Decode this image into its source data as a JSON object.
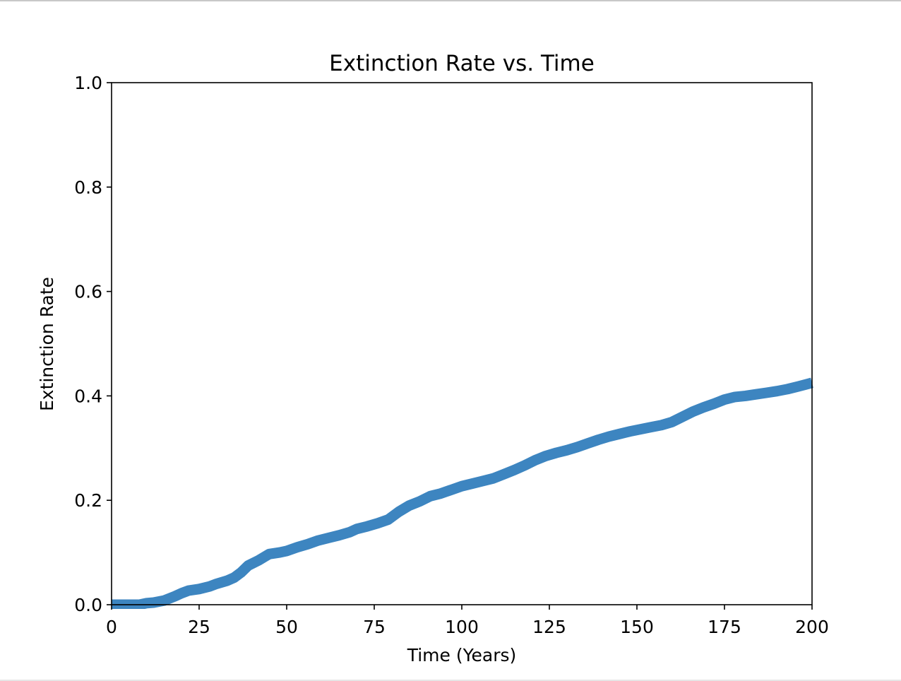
{
  "chart_data": {
    "type": "line",
    "title": "Extinction Rate vs. Time",
    "xlabel": "Time (Years)",
    "ylabel": "Extinction Rate",
    "xlim": [
      0,
      200
    ],
    "ylim": [
      0,
      1.0
    ],
    "x_ticks": [
      "0",
      "25",
      "50",
      "75",
      "100",
      "125",
      "150",
      "175",
      "200"
    ],
    "y_ticks": [
      "0.0",
      "0.2",
      "0.4",
      "0.6",
      "0.8",
      "1.0"
    ],
    "grid": false,
    "line_color": "#3d85c0",
    "series": [
      {
        "x": [
          0,
          5,
          8,
          10,
          12,
          15,
          18,
          20,
          22,
          25,
          28,
          30,
          33,
          35,
          37,
          39,
          42,
          45,
          48,
          50,
          53,
          56,
          59,
          62,
          65,
          68,
          70,
          73,
          76,
          79,
          82,
          85,
          88,
          91,
          94,
          97,
          100,
          103,
          106,
          109,
          112,
          115,
          118,
          121,
          124,
          127,
          130,
          133,
          136,
          139,
          142,
          145,
          148,
          151,
          154,
          157,
          160,
          163,
          166,
          169,
          172,
          175,
          178,
          181,
          184,
          187,
          190,
          193,
          196,
          200
        ],
        "y": [
          0.0,
          0.0,
          0.0,
          0.003,
          0.004,
          0.008,
          0.016,
          0.022,
          0.027,
          0.03,
          0.035,
          0.04,
          0.046,
          0.052,
          0.062,
          0.075,
          0.085,
          0.097,
          0.1,
          0.103,
          0.11,
          0.116,
          0.123,
          0.128,
          0.133,
          0.139,
          0.145,
          0.15,
          0.156,
          0.163,
          0.178,
          0.19,
          0.198,
          0.208,
          0.213,
          0.22,
          0.227,
          0.232,
          0.237,
          0.242,
          0.25,
          0.258,
          0.267,
          0.277,
          0.285,
          0.291,
          0.296,
          0.302,
          0.309,
          0.316,
          0.322,
          0.327,
          0.332,
          0.336,
          0.34,
          0.344,
          0.35,
          0.36,
          0.37,
          0.378,
          0.385,
          0.393,
          0.398,
          0.4,
          0.403,
          0.406,
          0.409,
          0.413,
          0.418,
          0.425
        ]
      }
    ]
  }
}
